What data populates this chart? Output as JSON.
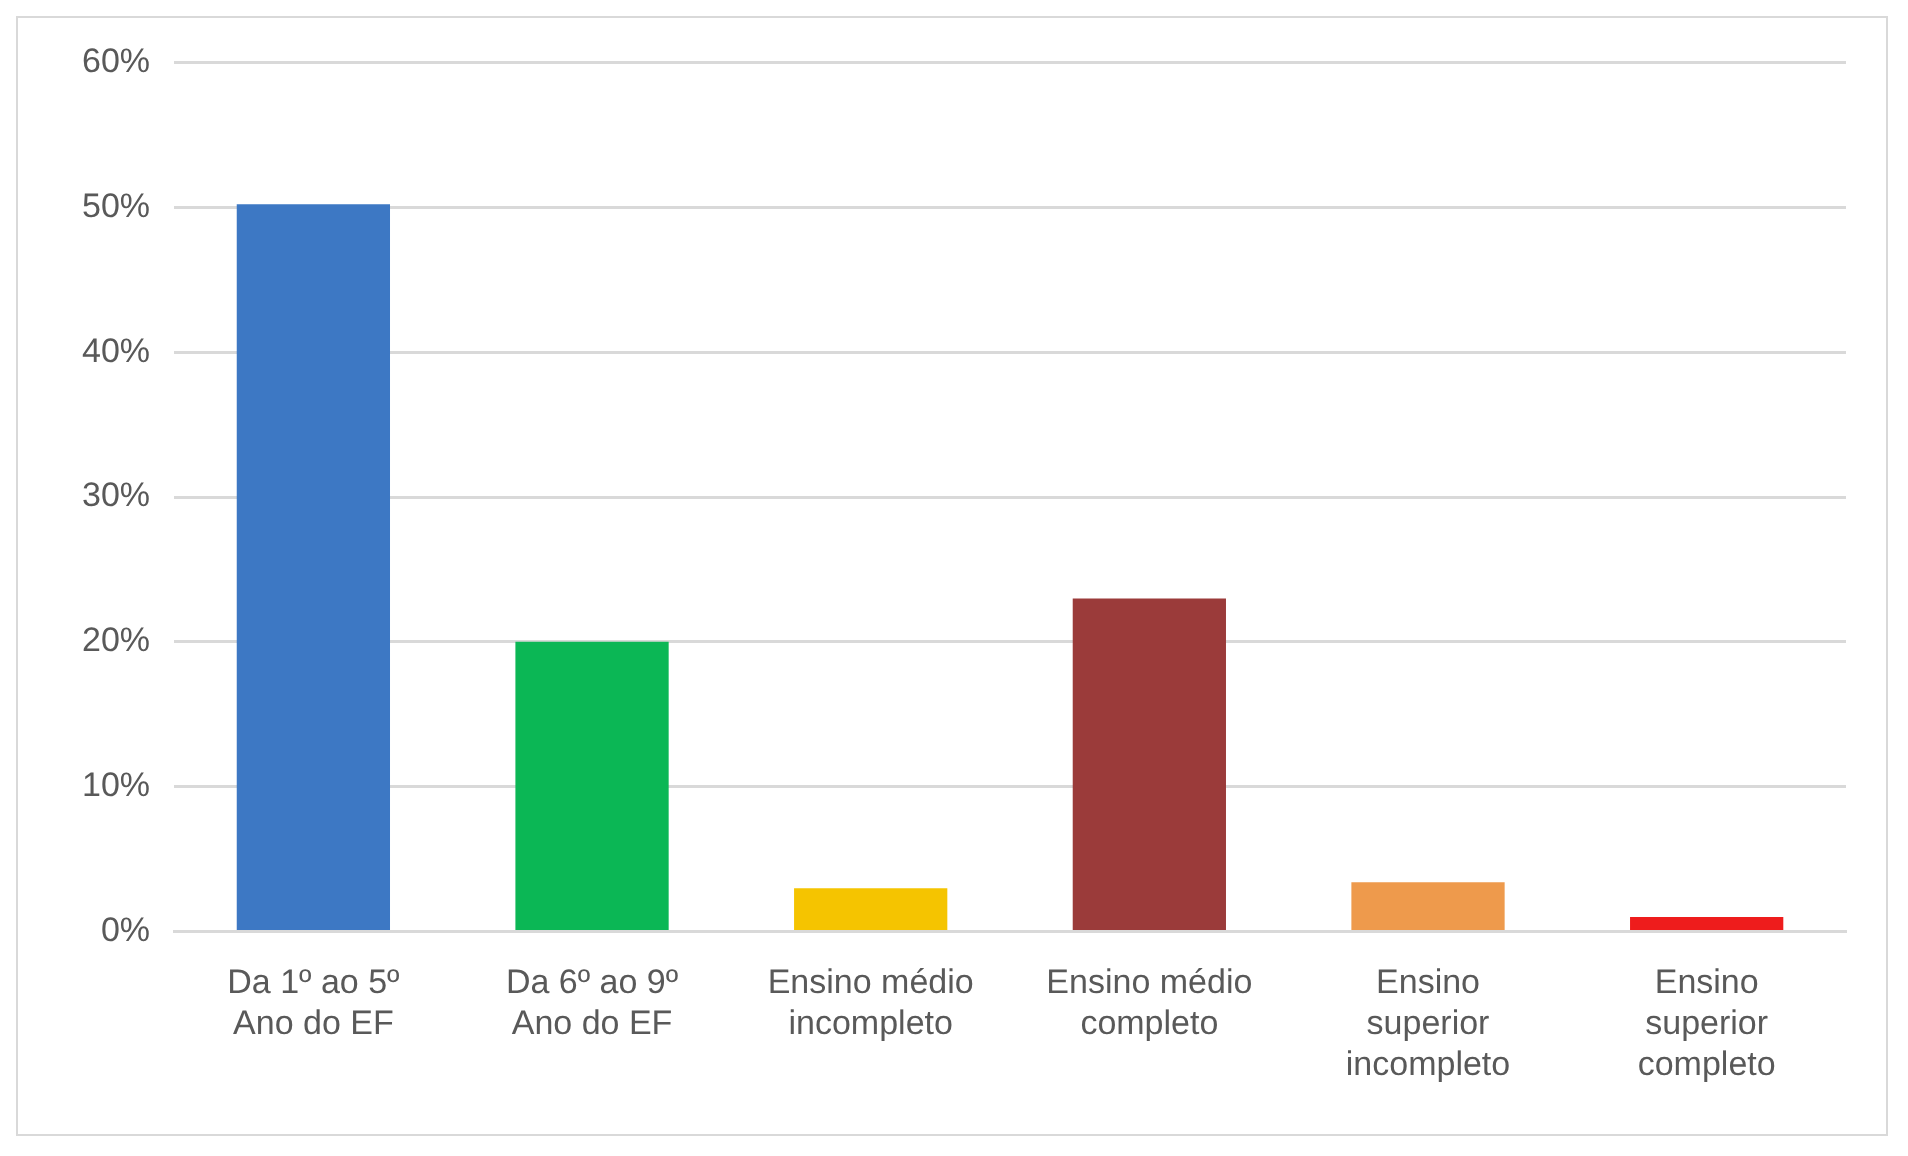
{
  "chart_data": {
    "type": "bar",
    "categories": [
      "Da 1º ao 5º Ano do EF",
      "Da 6º ao 9º Ano do EF",
      "Ensino médio incompleto",
      "Ensino médio completo",
      "Ensino superior incompleto",
      "Ensino superior completo"
    ],
    "values": [
      50.2,
      20,
      3,
      23,
      3.4,
      1
    ],
    "colors": [
      "#3d78c4",
      "#0bb755",
      "#f5c400",
      "#9b3b3a",
      "#ee9a4c",
      "#ee1c1c"
    ],
    "ylim": [
      0,
      60
    ],
    "yticks": [
      {
        "value": 0,
        "label": "0%"
      },
      {
        "value": 10,
        "label": "10%"
      },
      {
        "value": 20,
        "label": "20%"
      },
      {
        "value": 30,
        "label": "30%"
      },
      {
        "value": 40,
        "label": "40%"
      },
      {
        "value": 50,
        "label": "50%"
      },
      {
        "value": 60,
        "label": "60%"
      }
    ],
    "grid": "y",
    "legend": false
  }
}
